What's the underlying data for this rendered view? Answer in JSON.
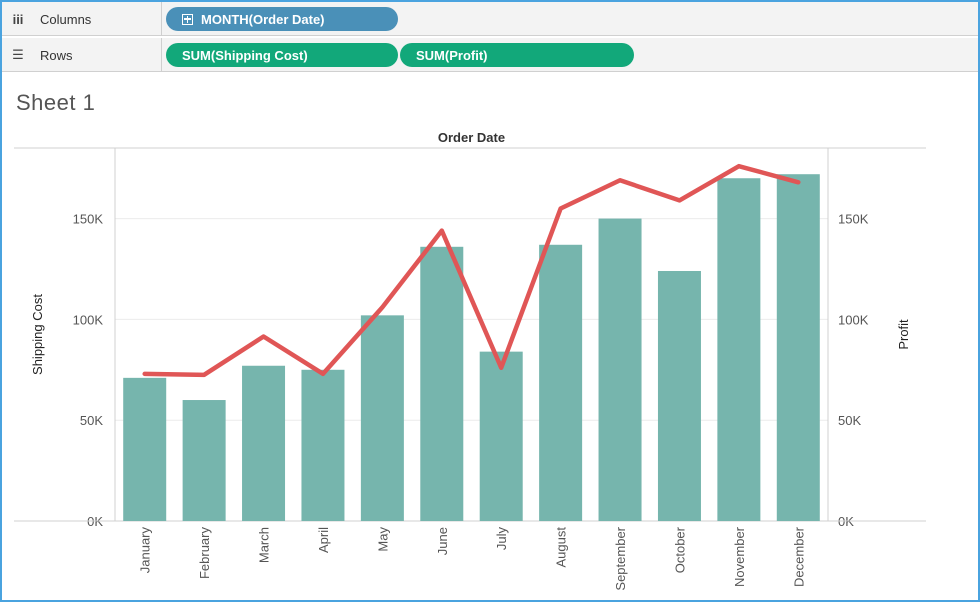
{
  "shelves": {
    "columns": {
      "label": "Columns",
      "pills": [
        "MONTH(Order Date)"
      ]
    },
    "rows": {
      "label": "Rows",
      "pills": [
        "SUM(Shipping Cost)",
        "SUM(Profit)"
      ]
    }
  },
  "sheet": {
    "title": "Sheet 1"
  },
  "colors": {
    "bar": "#76b5ad",
    "line": "#e05656",
    "pill_blue": "#4a90b8",
    "pill_green": "#12a87a"
  },
  "chart_data": {
    "type": "bar",
    "title": "Order Date",
    "categories": [
      "January",
      "February",
      "March",
      "April",
      "May",
      "June",
      "July",
      "August",
      "September",
      "October",
      "November",
      "December"
    ],
    "series": [
      {
        "name": "Shipping Cost",
        "type": "bar",
        "axis": "left",
        "values": [
          71000,
          60000,
          77000,
          75000,
          102000,
          136000,
          84000,
          137000,
          150000,
          124000,
          170000,
          172000
        ]
      },
      {
        "name": "Profit",
        "type": "line",
        "axis": "right",
        "values": [
          73000,
          72500,
          91500,
          73000,
          106000,
          144000,
          76000,
          155000,
          169000,
          159000,
          176000,
          168000
        ]
      }
    ],
    "ylabel": "Shipping Cost",
    "y2label": "Profit",
    "ylim": [
      0,
      185000
    ],
    "y2lim": [
      0,
      185000
    ],
    "yticks": [
      {
        "value": 0,
        "label": "0K"
      },
      {
        "value": 50000,
        "label": "50K"
      },
      {
        "value": 100000,
        "label": "100K"
      },
      {
        "value": 150000,
        "label": "150K"
      }
    ],
    "grid": true,
    "legend": "none"
  }
}
